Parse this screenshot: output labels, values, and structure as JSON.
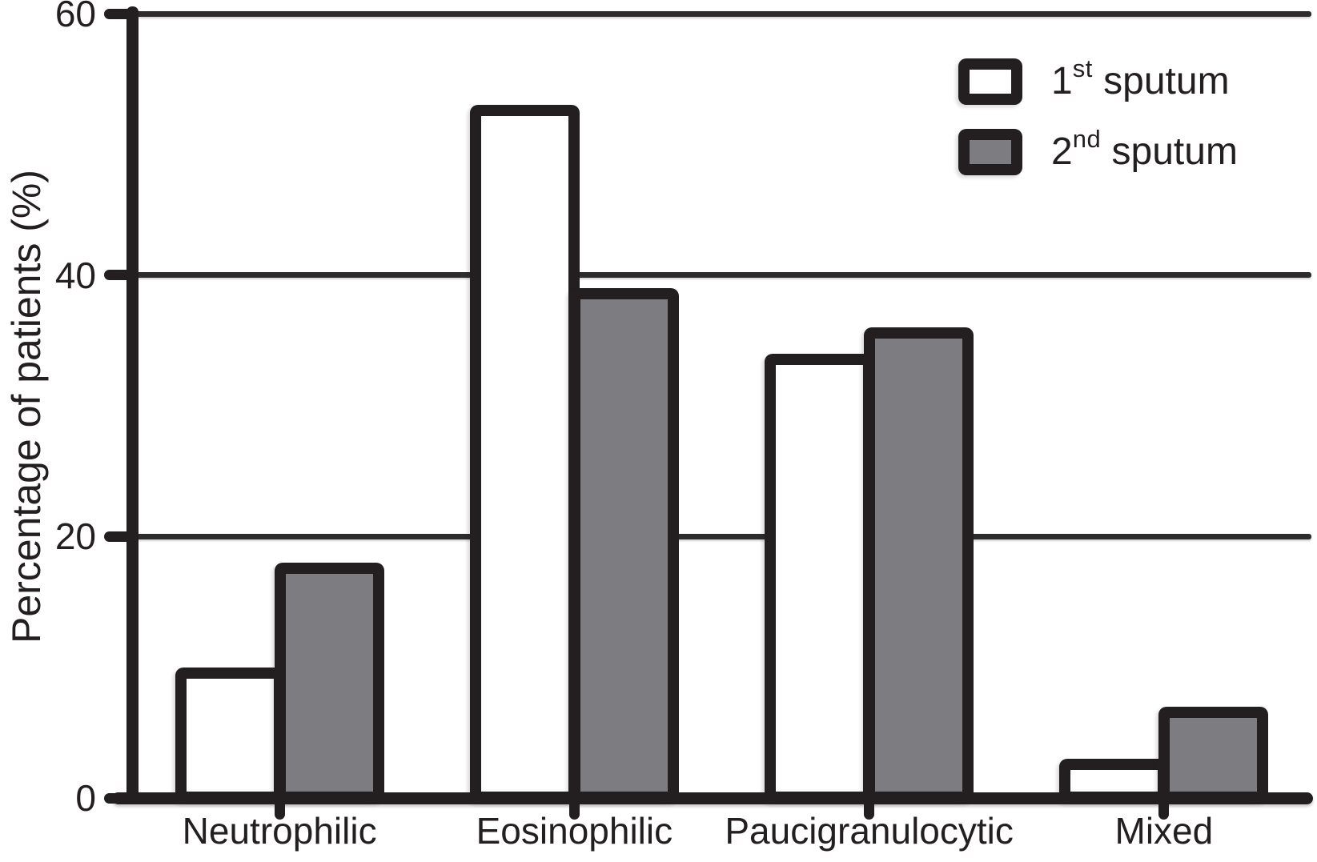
{
  "figure": {
    "background": "#ffffff",
    "ink_color": "#231f20",
    "grid_color": "#2d2b2c",
    "series1_fill": "#ffffff",
    "series2_fill": "#7c7c81"
  },
  "chart_data": {
    "type": "bar",
    "title": "",
    "xlabel": "",
    "ylabel": "Percentage of patients (%)",
    "ylim": [
      0,
      60
    ],
    "yticks": [
      0,
      20,
      40,
      60
    ],
    "grid": "horizontal gridlines at 20, 40 and 60",
    "legend_position": "top-right inside plot",
    "categories": [
      "Neutrophilic",
      "Eosinophilic",
      "Paucigranulocytic",
      "Mixed"
    ],
    "series": [
      {
        "name": "1st sputum",
        "legend": {
          "prefix": "1",
          "sup": "st",
          "rest": " sputum"
        },
        "fill": "#ffffff",
        "values": [
          10,
          53,
          34,
          3
        ]
      },
      {
        "name": "2nd sputum",
        "legend": {
          "prefix": "2",
          "sup": "nd",
          "rest": " sputum"
        },
        "fill": "#7c7c81",
        "values": [
          18,
          39,
          36,
          7
        ]
      }
    ]
  }
}
